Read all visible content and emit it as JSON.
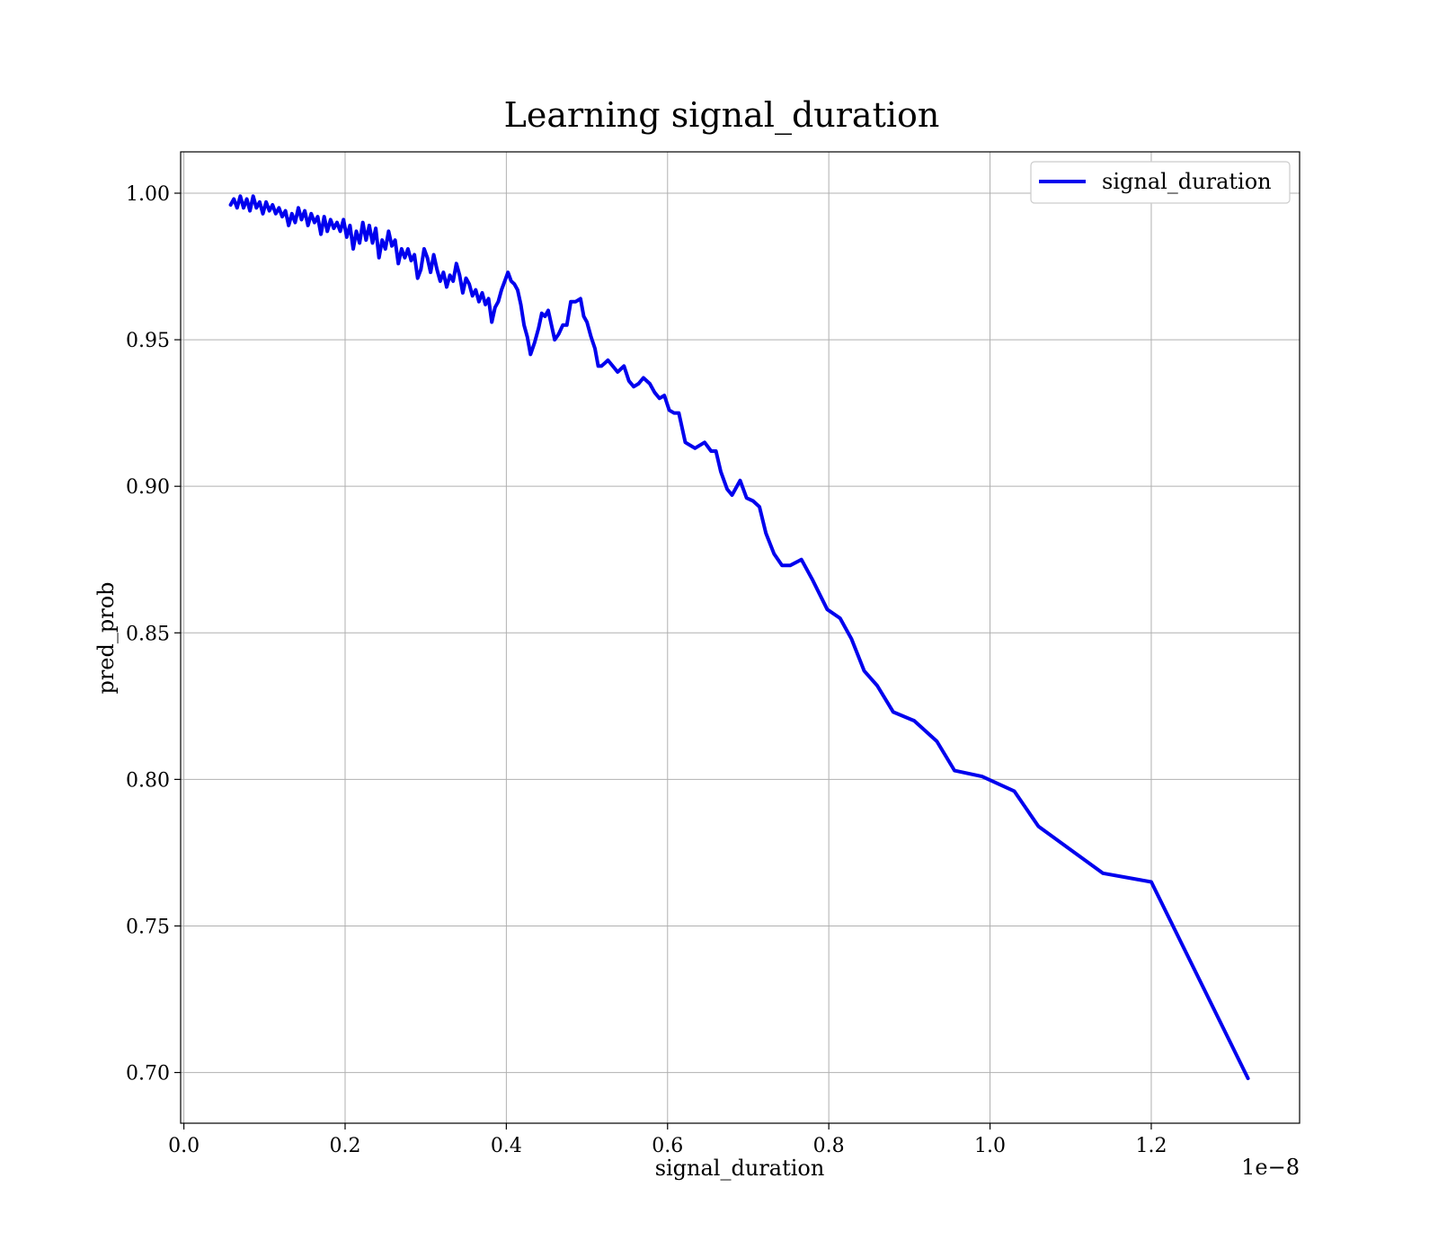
{
  "chart_data": {
    "type": "line",
    "title": "Learning signal_duration",
    "xlabel": "signal_duration",
    "ylabel": "pred_prob",
    "x_scale_label": "1e−8",
    "xlim": [
      -0.004,
      1.384
    ],
    "ylim": [
      0.6827,
      1.0141
    ],
    "x_ticks": [
      0.0,
      0.2,
      0.4,
      0.6,
      0.8,
      1.0,
      1.2
    ],
    "x_tick_labels": [
      "0.0",
      "0.2",
      "0.4",
      "0.6",
      "0.8",
      "1.0",
      "1.2"
    ],
    "y_ticks": [
      0.7,
      0.75,
      0.8,
      0.85,
      0.9,
      0.95,
      1.0
    ],
    "y_tick_labels": [
      "0.70",
      "0.75",
      "0.80",
      "0.85",
      "0.90",
      "0.95",
      "1.00"
    ],
    "grid": true,
    "legend_position": "top-right",
    "series": [
      {
        "name": "signal_duration",
        "color": "#0000ee",
        "points": [
          [
            0.058,
            0.996
          ],
          [
            0.062,
            0.998
          ],
          [
            0.066,
            0.995
          ],
          [
            0.07,
            0.999
          ],
          [
            0.074,
            0.995
          ],
          [
            0.078,
            0.998
          ],
          [
            0.082,
            0.994
          ],
          [
            0.086,
            0.999
          ],
          [
            0.09,
            0.995
          ],
          [
            0.094,
            0.997
          ],
          [
            0.098,
            0.993
          ],
          [
            0.102,
            0.997
          ],
          [
            0.106,
            0.994
          ],
          [
            0.11,
            0.996
          ],
          [
            0.114,
            0.993
          ],
          [
            0.118,
            0.995
          ],
          [
            0.122,
            0.992
          ],
          [
            0.126,
            0.994
          ],
          [
            0.13,
            0.989
          ],
          [
            0.134,
            0.993
          ],
          [
            0.138,
            0.99
          ],
          [
            0.142,
            0.995
          ],
          [
            0.146,
            0.991
          ],
          [
            0.15,
            0.994
          ],
          [
            0.154,
            0.989
          ],
          [
            0.158,
            0.993
          ],
          [
            0.162,
            0.99
          ],
          [
            0.166,
            0.992
          ],
          [
            0.17,
            0.986
          ],
          [
            0.174,
            0.992
          ],
          [
            0.178,
            0.987
          ],
          [
            0.182,
            0.991
          ],
          [
            0.186,
            0.988
          ],
          [
            0.19,
            0.99
          ],
          [
            0.194,
            0.987
          ],
          [
            0.198,
            0.991
          ],
          [
            0.202,
            0.985
          ],
          [
            0.206,
            0.989
          ],
          [
            0.21,
            0.981
          ],
          [
            0.214,
            0.987
          ],
          [
            0.218,
            0.983
          ],
          [
            0.222,
            0.99
          ],
          [
            0.226,
            0.984
          ],
          [
            0.23,
            0.989
          ],
          [
            0.234,
            0.983
          ],
          [
            0.238,
            0.988
          ],
          [
            0.242,
            0.978
          ],
          [
            0.246,
            0.984
          ],
          [
            0.25,
            0.981
          ],
          [
            0.254,
            0.987
          ],
          [
            0.258,
            0.982
          ],
          [
            0.262,
            0.984
          ],
          [
            0.266,
            0.976
          ],
          [
            0.27,
            0.981
          ],
          [
            0.274,
            0.978
          ],
          [
            0.278,
            0.981
          ],
          [
            0.282,
            0.977
          ],
          [
            0.286,
            0.979
          ],
          [
            0.29,
            0.971
          ],
          [
            0.294,
            0.974
          ],
          [
            0.298,
            0.981
          ],
          [
            0.302,
            0.978
          ],
          [
            0.306,
            0.973
          ],
          [
            0.31,
            0.979
          ],
          [
            0.314,
            0.974
          ],
          [
            0.318,
            0.97
          ],
          [
            0.322,
            0.973
          ],
          [
            0.326,
            0.968
          ],
          [
            0.33,
            0.972
          ],
          [
            0.334,
            0.97
          ],
          [
            0.338,
            0.976
          ],
          [
            0.342,
            0.972
          ],
          [
            0.346,
            0.966
          ],
          [
            0.35,
            0.971
          ],
          [
            0.354,
            0.969
          ],
          [
            0.358,
            0.965
          ],
          [
            0.362,
            0.967
          ],
          [
            0.366,
            0.963
          ],
          [
            0.37,
            0.966
          ],
          [
            0.374,
            0.962
          ],
          [
            0.378,
            0.964
          ],
          [
            0.382,
            0.956
          ],
          [
            0.386,
            0.961
          ],
          [
            0.39,
            0.963
          ],
          [
            0.394,
            0.967
          ],
          [
            0.398,
            0.97
          ],
          [
            0.402,
            0.973
          ],
          [
            0.406,
            0.97
          ],
          [
            0.41,
            0.969
          ],
          [
            0.414,
            0.967
          ],
          [
            0.418,
            0.962
          ],
          [
            0.422,
            0.955
          ],
          [
            0.426,
            0.951
          ],
          [
            0.43,
            0.945
          ],
          [
            0.435,
            0.949
          ],
          [
            0.44,
            0.954
          ],
          [
            0.444,
            0.959
          ],
          [
            0.448,
            0.958
          ],
          [
            0.452,
            0.96
          ],
          [
            0.456,
            0.955
          ],
          [
            0.46,
            0.95
          ],
          [
            0.465,
            0.952
          ],
          [
            0.47,
            0.955
          ],
          [
            0.475,
            0.955
          ],
          [
            0.48,
            0.963
          ],
          [
            0.486,
            0.963
          ],
          [
            0.492,
            0.964
          ],
          [
            0.496,
            0.958
          ],
          [
            0.5,
            0.956
          ],
          [
            0.505,
            0.951
          ],
          [
            0.51,
            0.947
          ],
          [
            0.514,
            0.941
          ],
          [
            0.518,
            0.941
          ],
          [
            0.522,
            0.942
          ],
          [
            0.526,
            0.943
          ],
          [
            0.532,
            0.941
          ],
          [
            0.538,
            0.939
          ],
          [
            0.546,
            0.941
          ],
          [
            0.552,
            0.936
          ],
          [
            0.558,
            0.934
          ],
          [
            0.564,
            0.935
          ],
          [
            0.57,
            0.937
          ],
          [
            0.578,
            0.935
          ],
          [
            0.584,
            0.932
          ],
          [
            0.59,
            0.93
          ],
          [
            0.596,
            0.931
          ],
          [
            0.602,
            0.926
          ],
          [
            0.608,
            0.925
          ],
          [
            0.614,
            0.925
          ],
          [
            0.622,
            0.915
          ],
          [
            0.634,
            0.913
          ],
          [
            0.646,
            0.915
          ],
          [
            0.654,
            0.912
          ],
          [
            0.66,
            0.912
          ],
          [
            0.666,
            0.905
          ],
          [
            0.674,
            0.899
          ],
          [
            0.68,
            0.897
          ],
          [
            0.69,
            0.902
          ],
          [
            0.698,
            0.896
          ],
          [
            0.706,
            0.895
          ],
          [
            0.714,
            0.893
          ],
          [
            0.722,
            0.884
          ],
          [
            0.732,
            0.877
          ],
          [
            0.742,
            0.873
          ],
          [
            0.752,
            0.873
          ],
          [
            0.766,
            0.875
          ],
          [
            0.78,
            0.868
          ],
          [
            0.798,
            0.858
          ],
          [
            0.814,
            0.855
          ],
          [
            0.828,
            0.848
          ],
          [
            0.844,
            0.837
          ],
          [
            0.86,
            0.832
          ],
          [
            0.88,
            0.823
          ],
          [
            0.906,
            0.82
          ],
          [
            0.934,
            0.813
          ],
          [
            0.956,
            0.803
          ],
          [
            0.99,
            0.801
          ],
          [
            1.03,
            0.796
          ],
          [
            1.06,
            0.784
          ],
          [
            1.1,
            0.776
          ],
          [
            1.14,
            0.768
          ],
          [
            1.2,
            0.765
          ],
          [
            1.32,
            0.698
          ]
        ]
      }
    ]
  }
}
